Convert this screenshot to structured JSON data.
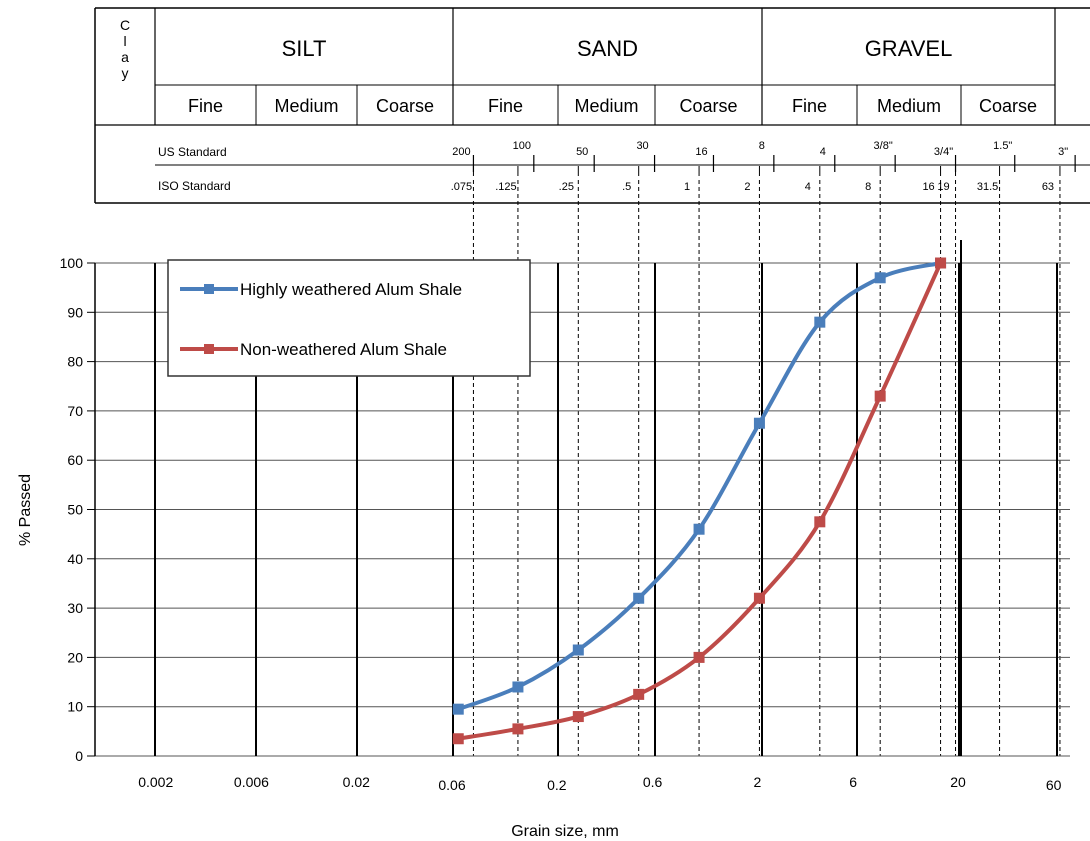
{
  "header": {
    "clay_letters": [
      "C",
      "l",
      "a",
      "y"
    ],
    "groups": [
      {
        "name": "SILT",
        "subs": [
          "Fine",
          "Medium",
          "Coarse"
        ]
      },
      {
        "name": "SAND",
        "subs": [
          "Fine",
          "Medium",
          "Coarse"
        ]
      },
      {
        "name": "GRAVEL",
        "subs": [
          "Fine",
          "Medium",
          "Coarse"
        ]
      }
    ],
    "us_standard_label": "US Standard",
    "iso_standard_label": "ISO Standard",
    "us_sieves": [
      {
        "label": "200",
        "mm": 0.075
      },
      {
        "label": "100",
        "mm": 0.15
      },
      {
        "label": "50",
        "mm": 0.3
      },
      {
        "label": "30",
        "mm": 0.6
      },
      {
        "label": "16",
        "mm": 1.18
      },
      {
        "label": "8",
        "mm": 2.36
      },
      {
        "label": "4",
        "mm": 4.75
      },
      {
        "label": "3/8\"",
        "mm": 9.5
      },
      {
        "label": "3/4\"",
        "mm": 19
      },
      {
        "label": "1.5\"",
        "mm": 37.5
      },
      {
        "label": "3\"",
        "mm": 75
      }
    ],
    "iso_sieves": [
      {
        "label": ".075",
        "mm": 0.075
      },
      {
        "label": ".125",
        "mm": 0.125
      },
      {
        "label": ".25",
        "mm": 0.25
      },
      {
        "label": ".5",
        "mm": 0.5
      },
      {
        "label": "1",
        "mm": 1
      },
      {
        "label": "2",
        "mm": 2
      },
      {
        "label": "4",
        "mm": 4
      },
      {
        "label": "8",
        "mm": 8
      },
      {
        "label": "16",
        "mm": 16
      },
      {
        "label": "19",
        "mm": 19
      },
      {
        "label": "31.5",
        "mm": 31.5
      },
      {
        "label": "63",
        "mm": 63
      }
    ]
  },
  "chart_data": {
    "type": "line",
    "xlabel": "Grain size, mm",
    "ylabel": "% Passed",
    "x_scale": "log",
    "x_ticks": [
      {
        "label": "0.002",
        "value": 0.002
      },
      {
        "label": "0.006",
        "value": 0.006
      },
      {
        "label": "0.02",
        "value": 0.02
      },
      {
        "label": "0.06",
        "value": 0.06
      },
      {
        "label": "0.2",
        "value": 0.2
      },
      {
        "label": "0.6",
        "value": 0.6
      },
      {
        "label": "2",
        "value": 2
      },
      {
        "label": "6",
        "value": 6
      },
      {
        "label": "20",
        "value": 20
      },
      {
        "label": "60",
        "value": 60
      }
    ],
    "y_ticks": [
      0,
      10,
      20,
      30,
      40,
      50,
      60,
      70,
      80,
      90,
      100
    ],
    "ylim": [
      0,
      100
    ],
    "grid": true,
    "legend_position": "top-left",
    "series": [
      {
        "name": "Highly weathered Alum Shale",
        "color": "#4a7ebb",
        "x": [
          0.063,
          0.125,
          0.25,
          0.5,
          1,
          2,
          4,
          8,
          16
        ],
        "y": [
          9.5,
          14,
          21.5,
          32,
          46,
          67.5,
          88,
          97,
          100
        ]
      },
      {
        "name": "Non-weathered Alum Shale",
        "color": "#be4b48",
        "x": [
          0.063,
          0.125,
          0.25,
          0.5,
          1,
          2,
          4,
          8,
          16
        ],
        "y": [
          3.5,
          5.5,
          8,
          12.5,
          20,
          32,
          47.5,
          73,
          100
        ]
      }
    ]
  }
}
